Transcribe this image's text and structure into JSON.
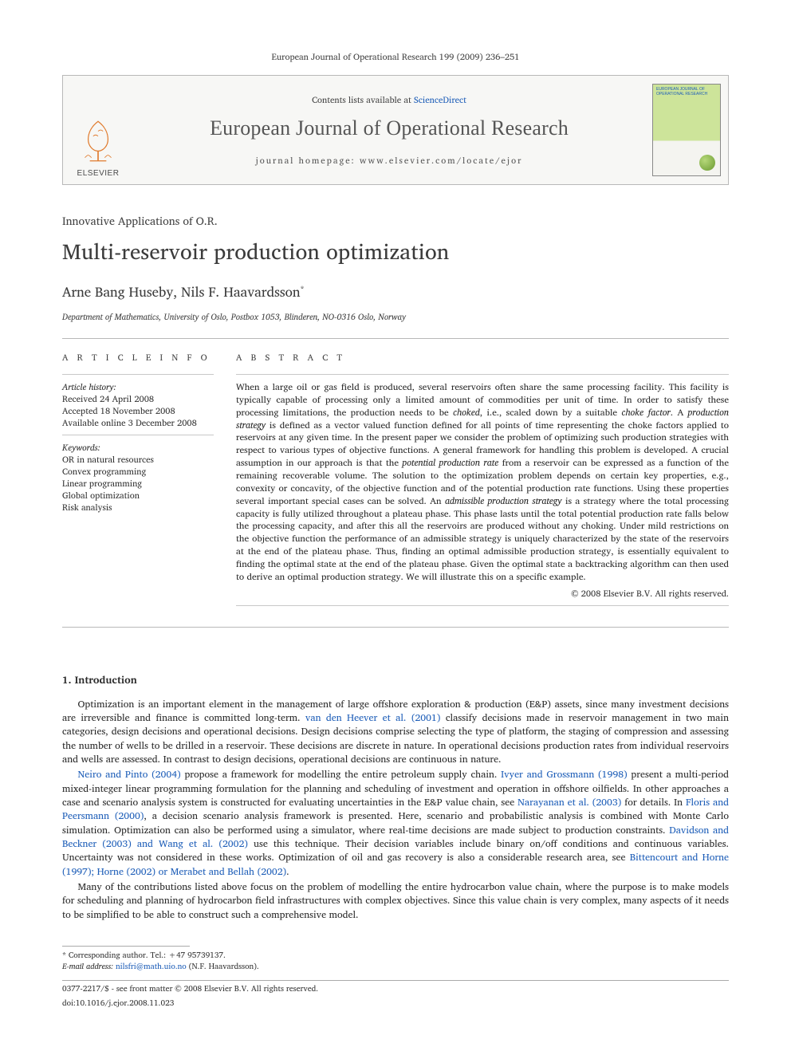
{
  "header_cite": "European Journal of Operational Research 199 (2009) 236–251",
  "banner": {
    "publisher": "ELSEVIER",
    "contents_prefix": "Contents lists available at ",
    "contents_link": "ScienceDirect",
    "journal": "European Journal of Operational Research",
    "homepage_label": "journal homepage: www.elsevier.com/locate/ejor",
    "cover_title": "EUROPEAN JOURNAL OF OPERATIONAL RESEARCH"
  },
  "section_label": "Innovative Applications of O.R.",
  "title": "Multi-reservoir production optimization",
  "authors": "Arne Bang Huseby, Nils F. Haavardsson",
  "author_marker": "*",
  "affiliation": "Department of Mathematics, University of Oslo, Postbox 1053, Blinderen, NO-0316 Oslo, Norway",
  "info_head": "A R T I C L E   I N F O",
  "abs_head": "A B S T R A C T",
  "history_label": "Article history:",
  "history": {
    "received": "Received 24 April 2008",
    "accepted": "Accepted 18 November 2008",
    "online": "Available online 3 December 2008"
  },
  "keywords_label": "Keywords:",
  "keywords": [
    "OR in natural resources",
    "Convex programming",
    "Linear programming",
    "Global optimization",
    "Risk analysis"
  ],
  "abstract": "When a large oil or gas field is produced, several reservoirs often share the same processing facility. This facility is typically capable of processing only a limited amount of commodities per unit of time. In order to satisfy these processing limitations, the production needs to be choked, i.e., scaled down by a suitable choke factor. A production strategy is defined as a vector valued function defined for all points of time representing the choke factors applied to reservoirs at any given time. In the present paper we consider the problem of optimizing such production strategies with respect to various types of objective functions. A general framework for handling this problem is developed. A crucial assumption in our approach is that the potential production rate from a reservoir can be expressed as a function of the remaining recoverable volume. The solution to the optimization problem depends on certain key properties, e.g., convexity or concavity, of the objective function and of the potential production rate functions. Using these properties several important special cases can be solved. An admissible production strategy is a strategy where the total processing capacity is fully utilized throughout a plateau phase. This phase lasts until the total potential production rate falls below the processing capacity, and after this all the reservoirs are produced without any choking. Under mild restrictions on the objective function the performance of an admissible strategy is uniquely characterized by the state of the reservoirs at the end of the plateau phase. Thus, finding an optimal admissible production strategy, is essentially equivalent to finding the optimal state at the end of the plateau phase. Given the optimal state a backtracking algorithm can then used to derive an optimal production strategy. We will illustrate this on a specific example.",
  "copyright": "© 2008 Elsevier B.V. All rights reserved.",
  "sect1": "1. Introduction",
  "p1a": "Optimization is an important element in the management of large offshore exploration & production (E&P) assets, since many investment decisions are irreversible and finance is committed long-term. ",
  "ref1": "van den Heever et al. (2001)",
  "p1b": " classify decisions made in reservoir management in two main categories, design decisions and operational decisions. Design decisions comprise selecting the type of platform, the staging of compression and assessing the number of wells to be drilled in a reservoir. These decisions are discrete in nature. In operational decisions production rates from individual reservoirs and wells are assessed. In contrast to design decisions, operational decisions are continuous in nature.",
  "ref2": "Neiro and Pinto (2004)",
  "p2a": " propose a framework for modelling the entire petroleum supply chain. ",
  "ref3": "Ivyer and Grossmann (1998)",
  "p2b": " present a multi-period mixed-integer linear programming formulation for the planning and scheduling of investment and operation in offshore oilfields. In other approaches a case and scenario analysis system is constructed for evaluating uncertainties in the E&P value chain, see ",
  "ref4": "Narayanan et al. (2003)",
  "p2c": " for details. In ",
  "ref5": "Floris and Peersmann (2000)",
  "p2d": ", a decision scenario analysis framework is presented. Here, scenario and probabilistic analysis is combined with Monte Carlo simulation. Optimization can also be performed using a simulator, where real-time decisions are made subject to production constraints. ",
  "ref6": "Davidson and Beckner (2003) and Wang et al. (2002)",
  "p2e": " use this technique. Their decision variables include binary on/off conditions and continuous variables. Uncertainty was not considered in these works. Optimization of oil and gas recovery is also a considerable research area, see ",
  "ref7": "Bittencourt and Horne (1997); Horne (2002) or Merabet and Bellah (2002)",
  "p2f": ".",
  "p3": "Many of the contributions listed above focus on the problem of modelling the entire hydrocarbon value chain, where the purpose is to make models for scheduling and planning of hydrocarbon field infrastructures with complex objectives. Since this value chain is very complex, many aspects of it needs to be simplified to be able to construct such a comprehensive model.",
  "footnotes": {
    "corr_label": "* Corresponding author. Tel.: +47 95739137.",
    "email_label": "E-mail address:",
    "email": "nilsfri@math.uio.no",
    "email_suffix": " (N.F. Haavardsson)."
  },
  "copynote1": "0377-2217/$ - see front matter © 2008 Elsevier B.V. All rights reserved.",
  "copynote2": "doi:10.1016/j.ejor.2008.11.023",
  "colors": {
    "link": "#1e5eb8",
    "rule": "#b8b8b8",
    "text": "#2a2a2a",
    "banner_bg": "#f7f7f5",
    "cover_green": "#cde49a"
  }
}
